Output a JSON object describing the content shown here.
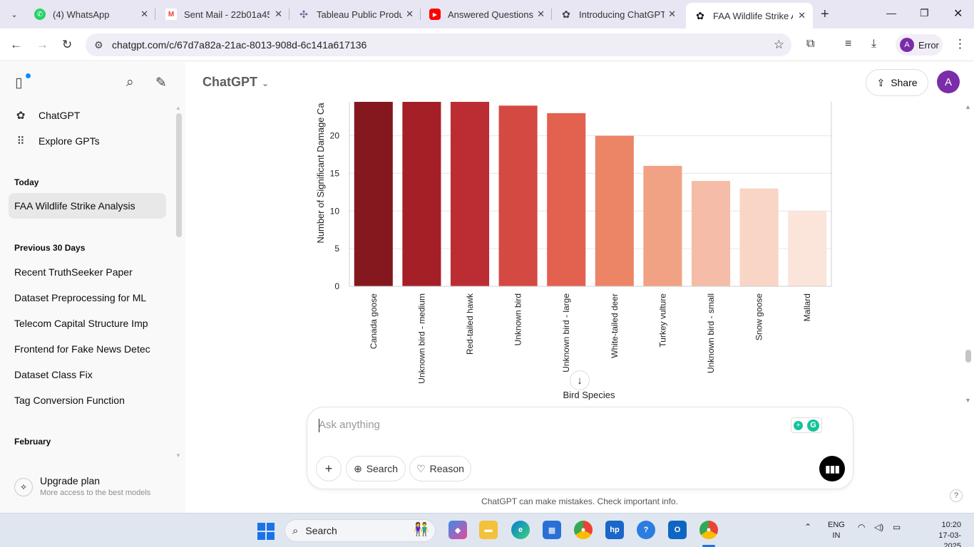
{
  "browser": {
    "tabs": [
      {
        "title": "(4) WhatsApp",
        "icon": "whatsapp-icon",
        "color": "#25d366"
      },
      {
        "title": "Sent Mail - 22b01a45",
        "icon": "gmail-icon",
        "color": "#ea4335"
      },
      {
        "title": "Tableau Public Produc",
        "icon": "tableau-icon",
        "color": "#5b6591"
      },
      {
        "title": "Answered Questions",
        "icon": "youtube-icon",
        "color": "#ff0000"
      },
      {
        "title": "Introducing ChatGPT",
        "icon": "openai-icon",
        "color": "#444444"
      },
      {
        "title": "FAA Wildlife Strike An",
        "icon": "openai-icon",
        "color": "#111111",
        "active": true
      }
    ],
    "url": "chatgpt.com/c/67d7a82a-21ac-8013-908d-6c141a617136",
    "profile_label": "Error",
    "profile_initial": "A"
  },
  "sidebar": {
    "links": [
      {
        "label": "ChatGPT",
        "icon": "openai-icon"
      },
      {
        "label": "Explore GPTs",
        "icon": "grid-icon"
      }
    ],
    "sections": [
      {
        "heading": "Today",
        "items": [
          "FAA Wildlife Strike Analysis"
        ]
      },
      {
        "heading": "Previous 30 Days",
        "items": [
          "Recent TruthSeeker Paper",
          "Dataset Preprocessing for ML",
          "Telecom Capital Structure Imp",
          "Frontend for Fake News Detec",
          "Dataset Class Fix",
          "Tag Conversion Function"
        ]
      },
      {
        "heading": "February",
        "items": []
      }
    ],
    "upgrade": {
      "title": "Upgrade plan",
      "subtitle": "More access to the best models"
    }
  },
  "header": {
    "model": "ChatGPT",
    "share_label": "Share",
    "avatar_initial": "A"
  },
  "chart_data": {
    "type": "bar",
    "xlabel": "Bird Species",
    "ylabel": "Number of Significant Damage Ca",
    "categories": [
      "Canada goose",
      "Unknown bird - medium",
      "Red-tailed hawk",
      "Unknown bird",
      "Unknown bird - large",
      "White-tailed deer",
      "Turkey vulture",
      "Unknown bird - small",
      "Snow goose",
      "Mallard"
    ],
    "values": [
      25,
      25,
      25,
      24,
      23,
      20,
      16,
      14,
      13,
      10
    ],
    "yticks": [
      0,
      5,
      10,
      15,
      20
    ],
    "ylim": [
      0,
      24.5
    ],
    "grid": true,
    "colors": [
      "#85171f",
      "#a51f27",
      "#bb2d33",
      "#d44a42",
      "#e2614f",
      "#ec8466",
      "#f1a285",
      "#f5bda7",
      "#f8d5c5",
      "#fbe4da"
    ]
  },
  "composer": {
    "placeholder": "Ask anything",
    "search_label": "Search",
    "reason_label": "Reason"
  },
  "disclaimer": "ChatGPT can make mistakes. Check important info.",
  "taskbar": {
    "search_label": "Search",
    "lang": "ENG",
    "region": "IN",
    "time": "10:20",
    "date": "17-03-2025"
  }
}
